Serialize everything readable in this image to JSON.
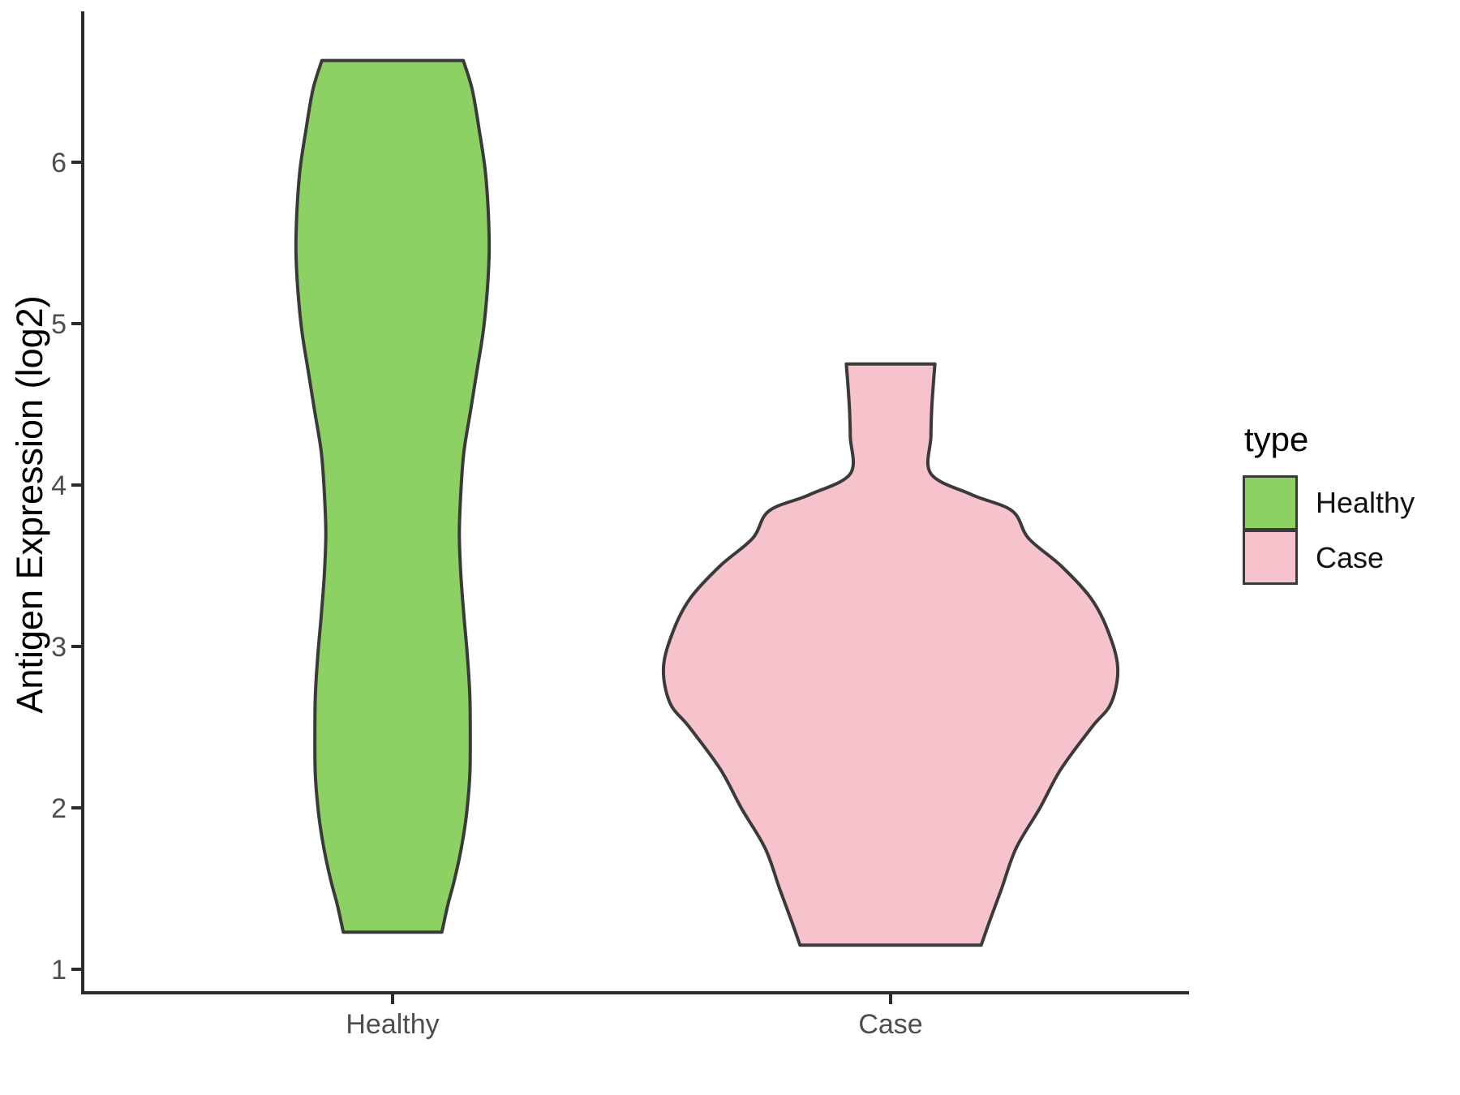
{
  "figure": {
    "background": "#ffffff"
  },
  "chart_data": {
    "type": "violin",
    "title": "",
    "xlabel": "",
    "ylabel": "Antigen Expression (log2)",
    "categories": [
      "Healthy",
      "Case"
    ],
    "y_ticks": [
      "1",
      "2",
      "3",
      "4",
      "5",
      "6"
    ],
    "ylim": [
      0.85,
      6.95
    ],
    "grid": "off",
    "legend": {
      "title": "type",
      "position": "right",
      "entries": [
        {
          "label": "Healthy",
          "color": "#8dd164"
        },
        {
          "label": "Case",
          "color": "#f6c3cd"
        }
      ]
    },
    "style": {
      "axis_text_color": "#4d4d4d",
      "axis_line_color": "#2b2b2b",
      "outline_color": "#3a3a3a",
      "outline_width": 4
    },
    "series": [
      {
        "name": "Healthy",
        "fill": "#8dd164",
        "min": 1.23,
        "max": 6.63,
        "profile": [
          [
            6.63,
            0.142
          ],
          [
            6.45,
            0.16
          ],
          [
            6.2,
            0.174
          ],
          [
            5.95,
            0.186
          ],
          [
            5.7,
            0.192
          ],
          [
            5.45,
            0.194
          ],
          [
            5.2,
            0.19
          ],
          [
            4.95,
            0.182
          ],
          [
            4.7,
            0.169
          ],
          [
            4.45,
            0.156
          ],
          [
            4.2,
            0.143
          ],
          [
            3.95,
            0.137
          ],
          [
            3.7,
            0.134
          ],
          [
            3.45,
            0.137
          ],
          [
            3.2,
            0.143
          ],
          [
            2.95,
            0.15
          ],
          [
            2.7,
            0.155
          ],
          [
            2.45,
            0.156
          ],
          [
            2.2,
            0.155
          ],
          [
            1.95,
            0.148
          ],
          [
            1.75,
            0.138
          ],
          [
            1.55,
            0.124
          ],
          [
            1.4,
            0.111
          ],
          [
            1.23,
            0.099
          ]
        ]
      },
      {
        "name": "Case",
        "fill": "#f6c3cd",
        "min": 1.15,
        "max": 4.75,
        "profile": [
          [
            4.75,
            0.089
          ],
          [
            4.5,
            0.083
          ],
          [
            4.3,
            0.081
          ],
          [
            4.07,
            0.081
          ],
          [
            3.94,
            0.163
          ],
          [
            3.84,
            0.244
          ],
          [
            3.67,
            0.277
          ],
          [
            3.5,
            0.342
          ],
          [
            3.3,
            0.402
          ],
          [
            3.1,
            0.436
          ],
          [
            2.87,
            0.456
          ],
          [
            2.65,
            0.443
          ],
          [
            2.5,
            0.404
          ],
          [
            2.24,
            0.342
          ],
          [
            2.0,
            0.3
          ],
          [
            1.75,
            0.252
          ],
          [
            1.5,
            0.223
          ],
          [
            1.3,
            0.199
          ],
          [
            1.15,
            0.182
          ]
        ]
      }
    ]
  }
}
